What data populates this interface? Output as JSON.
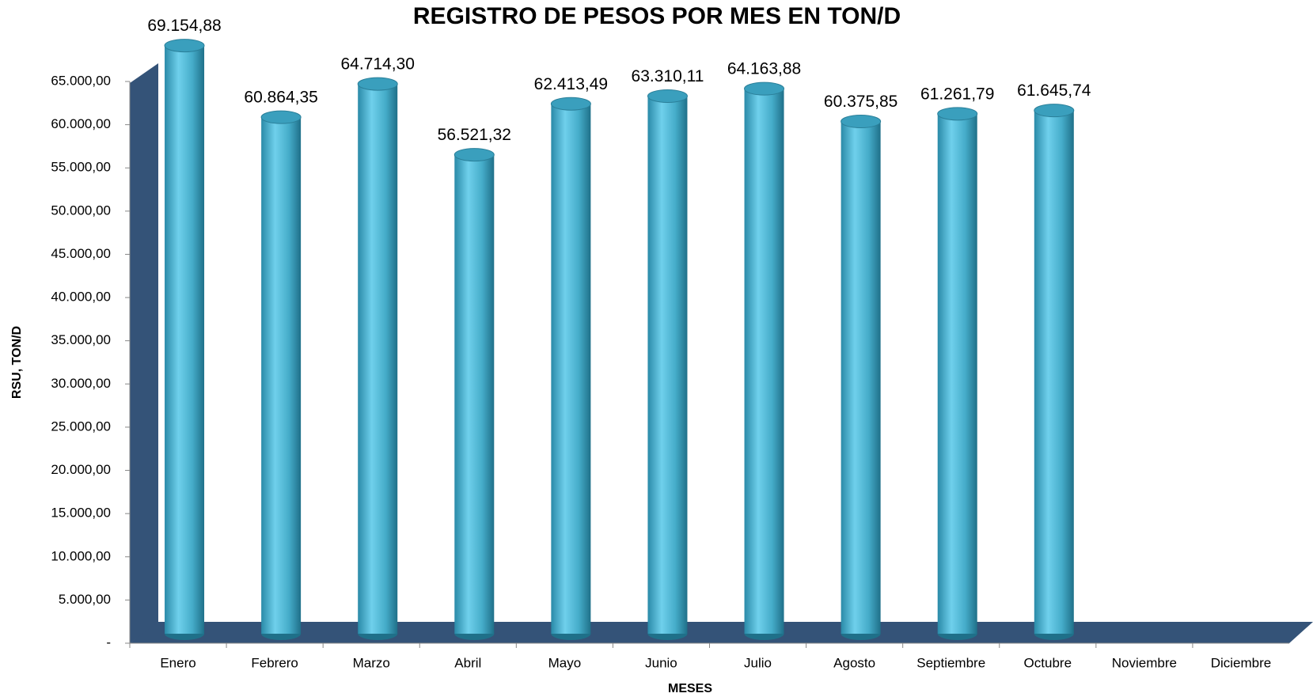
{
  "chart_data": {
    "type": "bar3d",
    "title": "REGISTRO DE PESOS POR MES EN TON/D",
    "xlabel": "MESES",
    "ylabel": "RSU, TON/D",
    "categories": [
      "Enero",
      "Febrero",
      "Marzo",
      "Abril",
      "Mayo",
      "Junio",
      "Julio",
      "Agosto",
      "Septiembre",
      "Octubre",
      "Noviembre",
      "Diciembre"
    ],
    "values": [
      69154.88,
      60864.35,
      64714.3,
      56521.32,
      62413.49,
      63310.11,
      64163.88,
      60375.85,
      61261.79,
      61645.74,
      null,
      null
    ],
    "value_labels": [
      "69.154,88",
      "60.864,35",
      "64.714,30",
      "56.521,32",
      "62.413,49",
      "63.310,11",
      "64.163,88",
      "60.375,85",
      "61.261,79",
      "61.645,74",
      null,
      null
    ],
    "color": "#4bb3d1",
    "ylim": [
      0,
      70000
    ],
    "yticks": [
      {
        "value": 0,
        "label": "-"
      },
      {
        "value": 5000,
        "label": "5.000,00"
      },
      {
        "value": 10000,
        "label": "10.000,00"
      },
      {
        "value": 15000,
        "label": "15.000,00"
      },
      {
        "value": 20000,
        "label": "20.000,00"
      },
      {
        "value": 25000,
        "label": "25.000,00"
      },
      {
        "value": 30000,
        "label": "30.000,00"
      },
      {
        "value": 35000,
        "label": "35.000,00"
      },
      {
        "value": 40000,
        "label": "40.000,00"
      },
      {
        "value": 45000,
        "label": "45.000,00"
      },
      {
        "value": 50000,
        "label": "50.000,00"
      },
      {
        "value": 55000,
        "label": "55.000,00"
      },
      {
        "value": 60000,
        "label": "60.000,00"
      },
      {
        "value": 65000,
        "label": "65.000,00"
      }
    ],
    "grid": false
  }
}
